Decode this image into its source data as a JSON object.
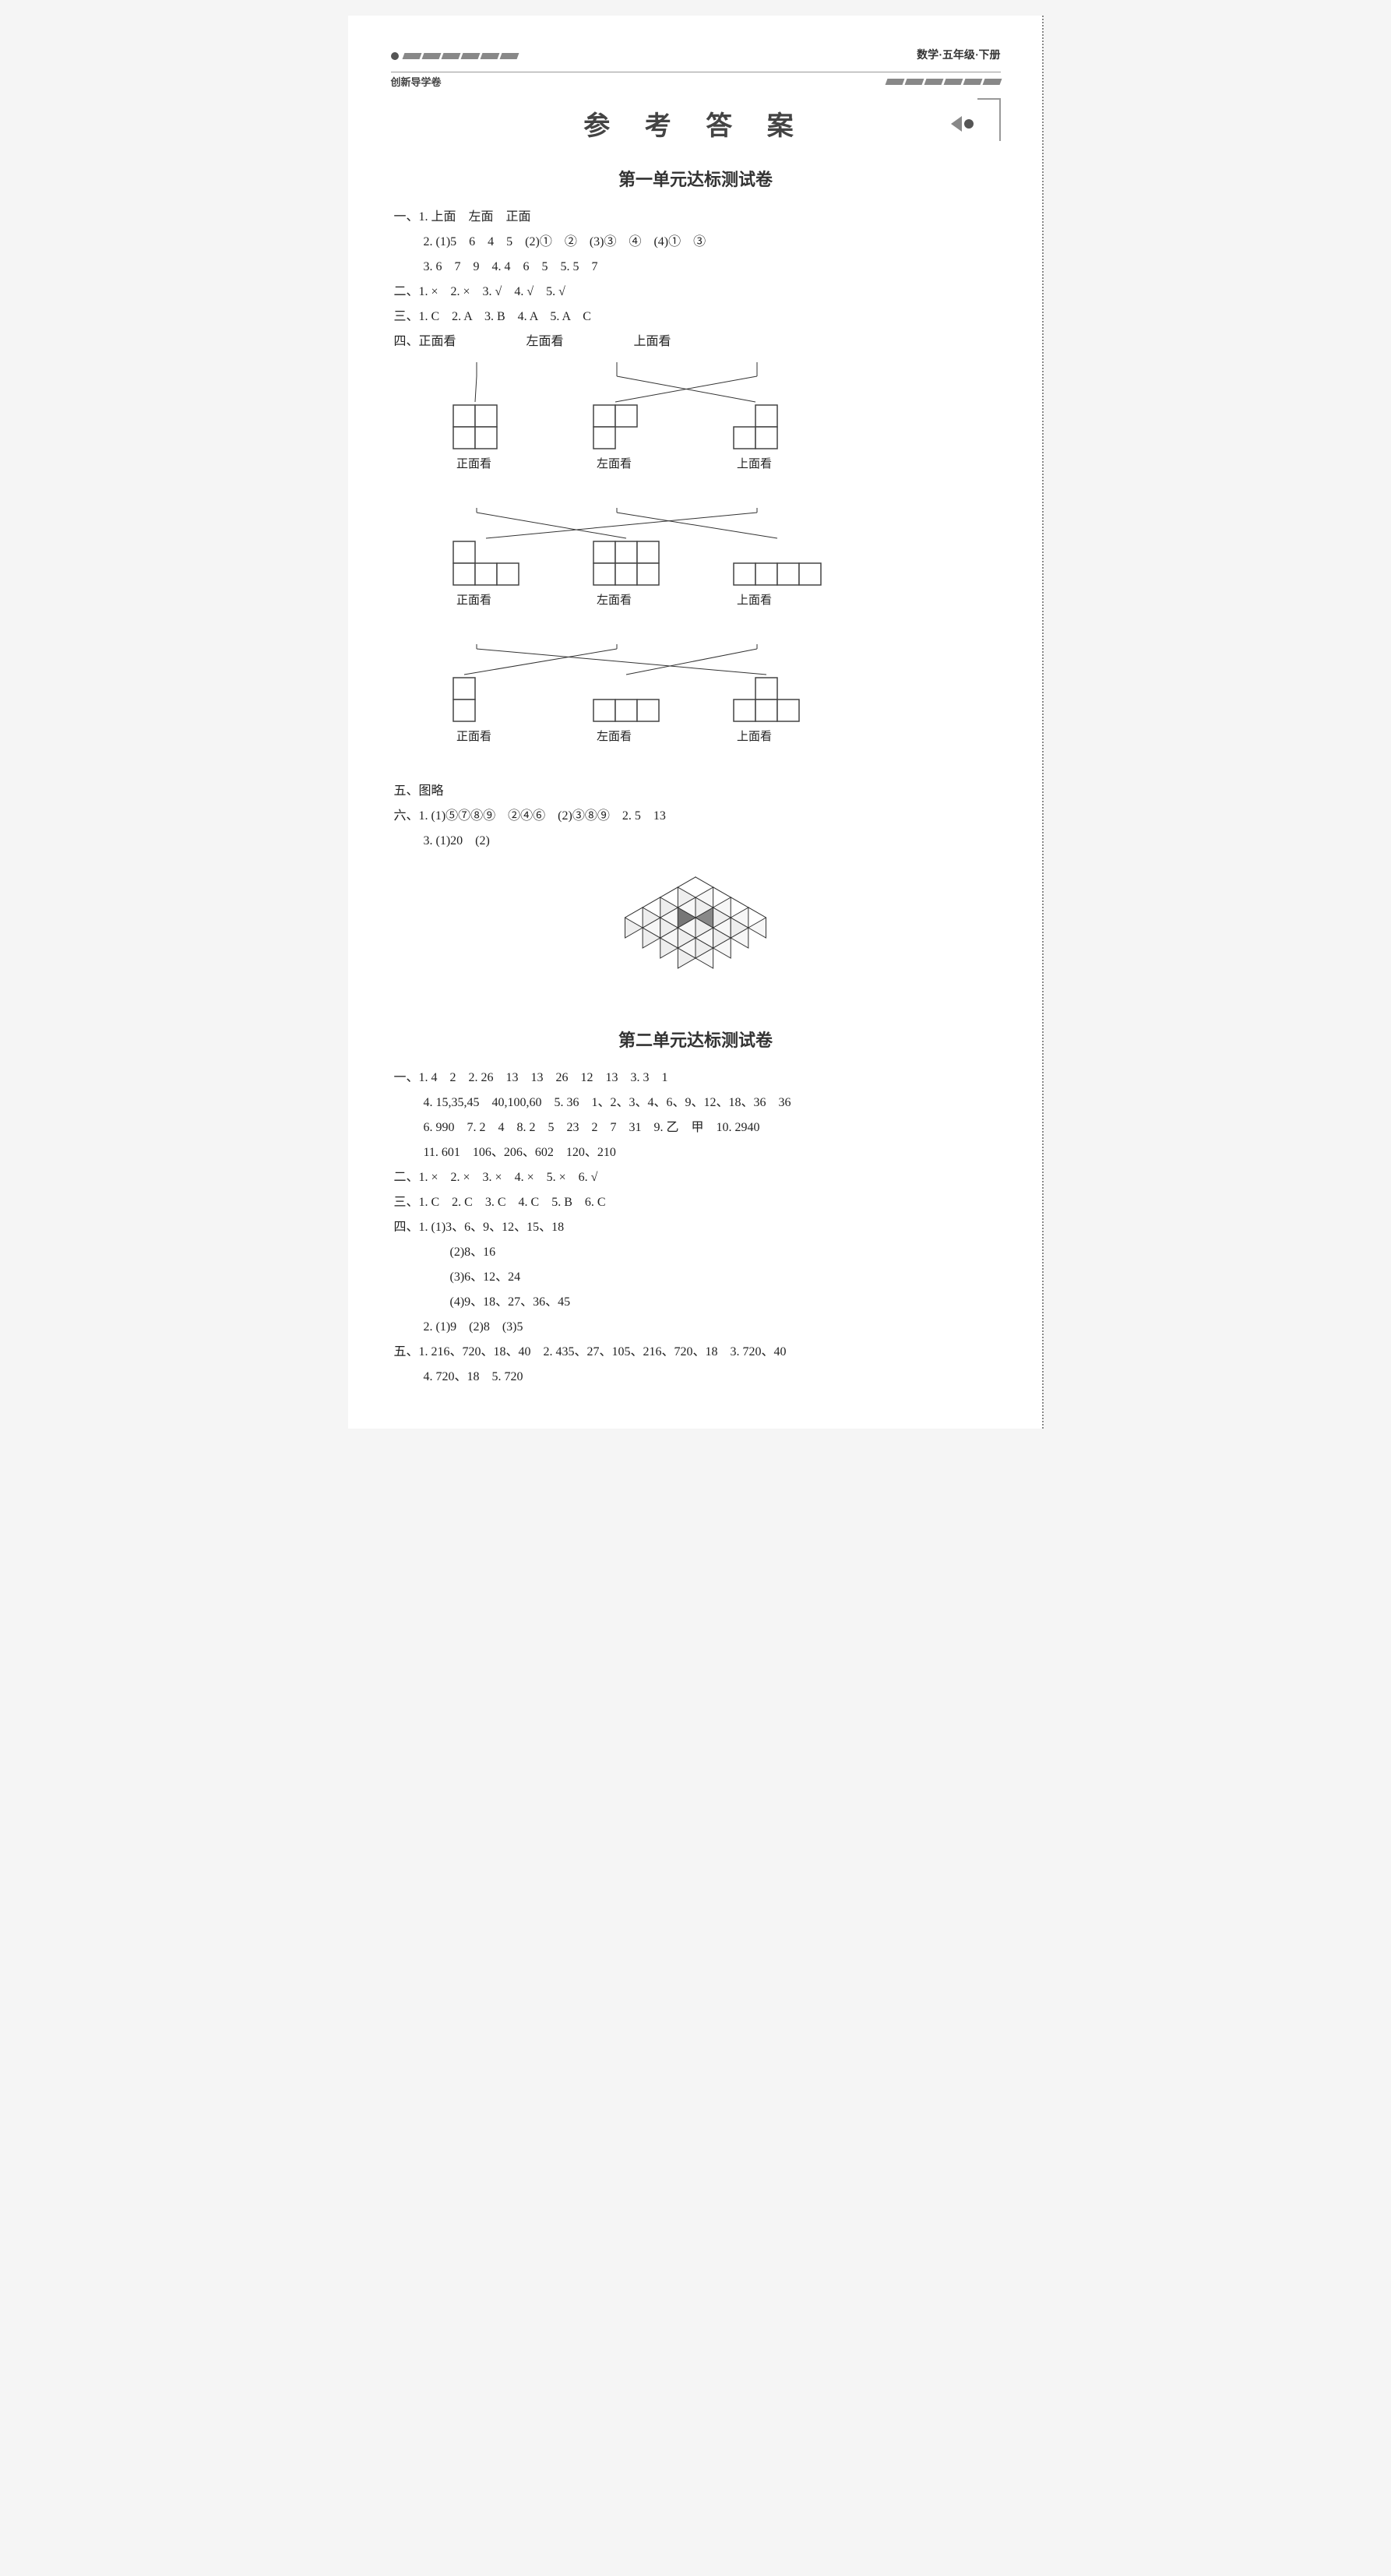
{
  "header": {
    "subject": "数学·五年级·下册",
    "series": "创新导学卷"
  },
  "title": "参 考 答 案",
  "colors": {
    "text": "#222222",
    "title": "#444444",
    "stripe": "#888888",
    "bg": "#ffffff",
    "page_bg": "#f5f5f5",
    "grid_line": "#444444",
    "cube_fill": "#ffffff",
    "cube_dark": "#888888"
  },
  "unit1": {
    "heading": "第一单元达标测试卷",
    "q1_1": "一、1. 上面　左面　正面",
    "q1_2": "2. (1)5　6　4　5　(2)①　②　(3)③　④　(4)①　③",
    "q1_3": "3. 6　7　9　4. 4　6　5　5. 5　7",
    "q2": "二、1. ×　2. ×　3. √　4. √　5. √",
    "q3": "三、1. C　2. A　3. B　4. A　5. A　C",
    "q4_header": "四、正面看",
    "views": {
      "labels": [
        "正面看",
        "左面看",
        "上面看"
      ],
      "row1_shapes": [
        {
          "type": "grid",
          "cols": 2,
          "rows": 2,
          "cells": [
            [
              1,
              1
            ],
            [
              1,
              1
            ]
          ]
        },
        {
          "type": "grid",
          "cols": 2,
          "rows": 2,
          "cells": [
            [
              1,
              1
            ],
            [
              1,
              0
            ]
          ]
        },
        {
          "type": "grid",
          "cols": 2,
          "rows": 2,
          "cells": [
            [
              0,
              1
            ],
            [
              1,
              1
            ]
          ]
        }
      ],
      "row2_shapes": [
        {
          "type": "grid",
          "cols": 3,
          "rows": 2,
          "cells": [
            [
              1,
              0,
              0
            ],
            [
              1,
              1,
              1
            ]
          ]
        },
        {
          "type": "grid",
          "cols": 3,
          "rows": 2,
          "cells": [
            [
              1,
              1,
              1
            ],
            [
              1,
              1,
              1
            ]
          ]
        },
        {
          "type": "grid",
          "cols": 4,
          "rows": 1,
          "cells": [
            [
              1,
              1,
              1,
              1
            ]
          ]
        }
      ],
      "row3_shapes": [
        {
          "type": "grid",
          "cols": 1,
          "rows": 2,
          "cells": [
            [
              1
            ],
            [
              1
            ]
          ]
        },
        {
          "type": "grid",
          "cols": 3,
          "rows": 1,
          "cells": [
            [
              1,
              1,
              1
            ]
          ]
        },
        {
          "type": "grid",
          "cols": 3,
          "rows": 2,
          "cells": [
            [
              0,
              1,
              0
            ],
            [
              1,
              1,
              1
            ]
          ]
        }
      ],
      "connections_r1": [
        [
          0,
          0
        ],
        [
          1,
          2
        ],
        [
          2,
          1
        ]
      ],
      "connections_r2": [
        [
          0,
          1
        ],
        [
          1,
          2
        ],
        [
          2,
          0
        ]
      ],
      "connections_r3": [
        [
          0,
          2
        ],
        [
          1,
          0
        ],
        [
          2,
          1
        ]
      ]
    },
    "q5": "五、图略",
    "q6_1": "六、1. (1)⑤⑦⑧⑨　②④⑥　(2)③⑧⑨　2. 5　13",
    "q6_2": "3. (1)20　(2)",
    "cube_stack": {
      "layers": 4,
      "highlight_pos": [
        1,
        1,
        1
      ]
    }
  },
  "unit2": {
    "heading": "第二单元达标测试卷",
    "q1_1": "一、1. 4　2　2. 26　13　13　26　12　13　3. 3　1",
    "q1_2": "4. 15,35,45　40,100,60　5. 36　1、2、3、4、6、9、12、18、36　36",
    "q1_3": "6. 990　7. 2　4　8. 2　5　23　2　7　31　9. 乙　甲　10. 2940",
    "q1_4": "11. 601　106、206、602　120、210",
    "q2": "二、1. ×　2. ×　3. ×　4. ×　5. ×　6. √",
    "q3": "三、1. C　2. C　3. C　4. C　5. B　6. C",
    "q4_1": "四、1. (1)3、6、9、12、15、18",
    "q4_2": "(2)8、16",
    "q4_3": "(3)6、12、24",
    "q4_4": "(4)9、18、27、36、45",
    "q4_5": "2. (1)9　(2)8　(3)5",
    "q5_1": "五、1. 216、720、18、40　2. 435、27、105、216、720、18　3. 720、40",
    "q5_2": "4. 720、18　5. 720"
  }
}
